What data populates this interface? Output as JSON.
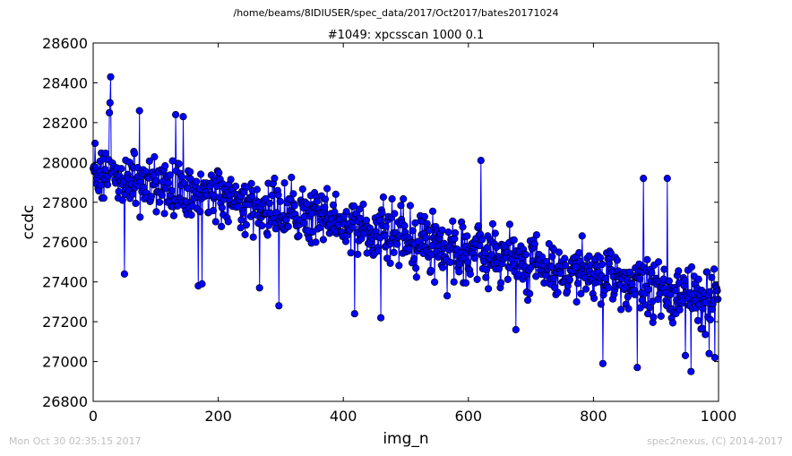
{
  "suptitle": "/home/beams/8IDIUSER/spec_data/2017/Oct2017/bates20171024",
  "footer_left": "Mon Oct 30 02:35:15 2017",
  "footer_right": "spec2nexus, (C) 2014-2017",
  "colors": {
    "series": "#0000ff",
    "footer": "#bfbfbf"
  },
  "chart_data": {
    "type": "line",
    "title": "#1049: xpcsscan 1000 0.1",
    "xlabel": "img_n",
    "ylabel": "ccdc",
    "xlim": [
      0,
      1000
    ],
    "ylim": [
      26800,
      28600
    ],
    "xticks": [
      0,
      200,
      400,
      600,
      800,
      1000
    ],
    "yticks": [
      26800,
      27000,
      27200,
      27400,
      27600,
      27800,
      28000,
      28200,
      28400,
      28600
    ],
    "grid": false,
    "marker": "circle",
    "series": [
      {
        "n_points": 1000,
        "x_start": 0,
        "x_step": 1,
        "trend_start": 27950,
        "trend_end": 27300,
        "noise_amplitude": 150,
        "outliers": [
          {
            "x": 28,
            "y": 28430
          },
          {
            "x": 27,
            "y": 28300
          },
          {
            "x": 26,
            "y": 28250
          },
          {
            "x": 74,
            "y": 28260
          },
          {
            "x": 132,
            "y": 28240
          },
          {
            "x": 144,
            "y": 28230
          },
          {
            "x": 50,
            "y": 27440
          },
          {
            "x": 168,
            "y": 27380
          },
          {
            "x": 174,
            "y": 27390
          },
          {
            "x": 266,
            "y": 27370
          },
          {
            "x": 297,
            "y": 27280
          },
          {
            "x": 418,
            "y": 27240
          },
          {
            "x": 460,
            "y": 27220
          },
          {
            "x": 566,
            "y": 27330
          },
          {
            "x": 620,
            "y": 28010
          },
          {
            "x": 676,
            "y": 27160
          },
          {
            "x": 815,
            "y": 26990
          },
          {
            "x": 870,
            "y": 26970
          },
          {
            "x": 880,
            "y": 27920
          },
          {
            "x": 918,
            "y": 27920
          },
          {
            "x": 956,
            "y": 26950
          },
          {
            "x": 994,
            "y": 27020
          },
          {
            "x": 947,
            "y": 27030
          },
          {
            "x": 985,
            "y": 27040
          }
        ]
      }
    ]
  }
}
